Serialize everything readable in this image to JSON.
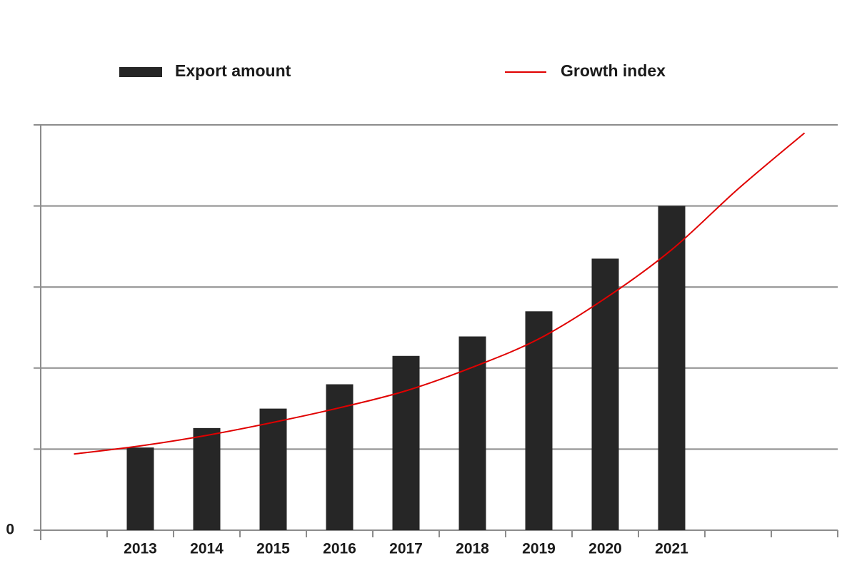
{
  "chart_data": {
    "type": "bar_line",
    "categories": [
      null,
      "2013",
      "2014",
      "2015",
      "2016",
      "2017",
      "2018",
      "2019",
      "2020",
      "2021",
      null,
      null
    ],
    "series": [
      {
        "name": "Export amount",
        "type": "bar",
        "color": "#262626",
        "values": [
          null,
          1.02,
          1.26,
          1.5,
          1.8,
          2.15,
          2.39,
          2.7,
          3.35,
          4.0,
          null,
          null
        ]
      },
      {
        "name": "Growth index",
        "type": "line",
        "color": "#e00000",
        "values": [
          0.94,
          1.04,
          1.17,
          1.33,
          1.51,
          1.72,
          2.01,
          2.36,
          2.86,
          3.46,
          4.21,
          4.9
        ]
      }
    ],
    "ylim": [
      0,
      5
    ],
    "yticks": [
      0
    ],
    "ygrid": [
      0,
      1,
      2,
      3,
      4,
      5
    ],
    "grid": true
  }
}
